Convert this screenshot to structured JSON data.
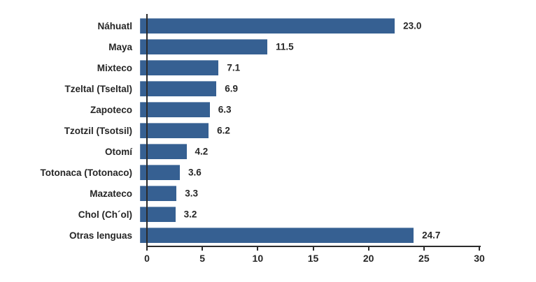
{
  "chart_data": {
    "type": "bar",
    "orientation": "horizontal",
    "title": "",
    "xlabel": "",
    "ylabel": "",
    "categories": [
      "Náhuatl",
      "Maya",
      "Mixteco",
      "Tzeltal (Tseltal)",
      "Zapoteco",
      "Tzotzil (Tsotsil)",
      "Otomí",
      "Totonaca (Totonaco)",
      "Mazateco",
      "Chol (Ch´ol)",
      "Otras lenguas"
    ],
    "values": [
      23.0,
      11.5,
      7.1,
      6.9,
      6.3,
      6.2,
      4.2,
      3.6,
      3.3,
      3.2,
      24.7
    ],
    "value_labels": [
      "23.0",
      "11.5",
      "7.1",
      "6.9",
      "6.3",
      "6.2",
      "4.2",
      "3.6",
      "3.3",
      "3.2",
      "24.7"
    ],
    "xlim": [
      0,
      30
    ],
    "x_ticks": [
      0,
      5,
      10,
      15,
      20,
      25,
      30
    ],
    "grid": false,
    "legend": false,
    "bar_color": "#366092",
    "text_color": "#262626",
    "axis_color": "#2b2b2b"
  }
}
